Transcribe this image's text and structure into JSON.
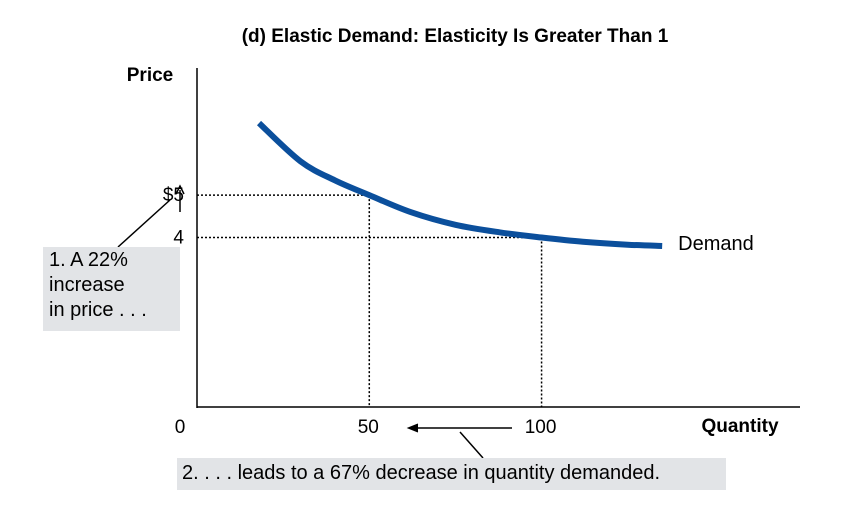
{
  "chart_data": {
    "type": "line",
    "title": "(d) Elastic Demand: Elasticity Is Greater Than 1",
    "xlabel": "Quantity",
    "ylabel": "Price",
    "x_ticks": [
      {
        "value": 0,
        "label": "0"
      },
      {
        "value": 50,
        "label": "50"
      },
      {
        "value": 100,
        "label": "100"
      }
    ],
    "y_ticks": [
      {
        "value": 5,
        "label": "$5"
      },
      {
        "value": 4,
        "label": "4"
      }
    ],
    "xlim": [
      0,
      175
    ],
    "ylim": [
      0,
      8
    ],
    "grid": false,
    "series": [
      {
        "name": "Demand",
        "color": "#0b4f9c",
        "x": [
          18,
          30,
          40,
          50,
          62,
          75,
          88,
          100,
          112,
          125,
          135
        ],
        "y": [
          6.7,
          5.8,
          5.35,
          5.0,
          4.6,
          4.3,
          4.12,
          4.0,
          3.9,
          3.83,
          3.8
        ]
      }
    ],
    "reference_points": [
      {
        "x": 50,
        "y": 5
      },
      {
        "x": 100,
        "y": 4
      }
    ]
  },
  "annotations": {
    "price_note": [
      "1. A 22%",
      "increase",
      "in price . . ."
    ],
    "quantity_note": "2. . . . leads to a 67% decrease in quantity demanded."
  }
}
